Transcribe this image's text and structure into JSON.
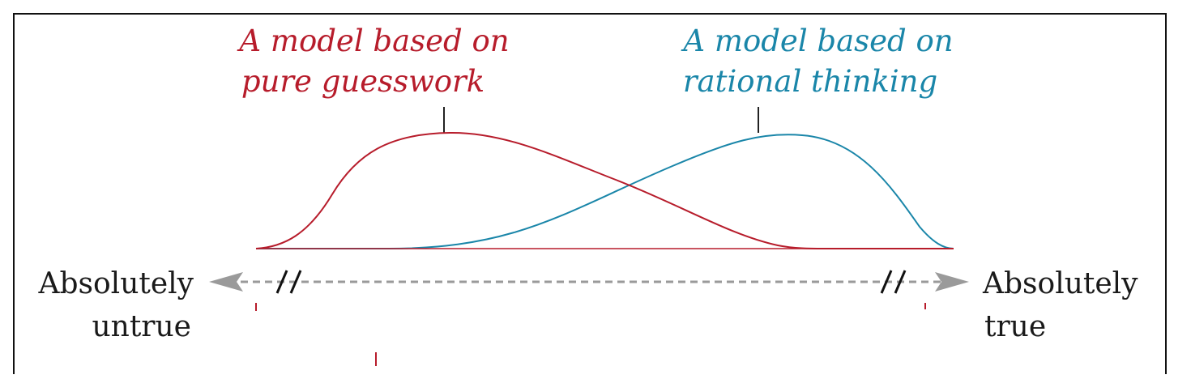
{
  "diagram": {
    "left_curve": {
      "title_line1": "A model based on",
      "title_line2": "pure guesswork",
      "color": "#b71c2b"
    },
    "right_curve": {
      "title_line1": "A model based on",
      "title_line2": "rational thinking",
      "color": "#1a86a9"
    },
    "axis": {
      "left_label_line1": "Absolutely",
      "left_label_line2": "untrue",
      "right_label_line1": "Absolutely",
      "right_label_line2": "true",
      "arrow_color": "#9a9a9a",
      "tick_color": "#b71c2b"
    }
  }
}
